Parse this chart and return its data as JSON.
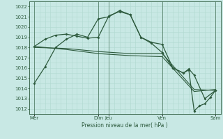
{
  "title": "Pression niveau de la mer( hPa )",
  "bg_color": "#c8e8e4",
  "grid_minor_color": "#b0d8d0",
  "grid_major_color": "#2d5a3d",
  "line_color": "#2d5a3d",
  "ylim": [
    1011.5,
    1022.5
  ],
  "yticks": [
    1012,
    1013,
    1014,
    1015,
    1016,
    1017,
    1018,
    1019,
    1020,
    1021,
    1022
  ],
  "xlim": [
    0,
    18
  ],
  "xtick_labels": [
    "Mer",
    "Dim",
    "Jeu",
    "Ven",
    "Sam"
  ],
  "xtick_positions": [
    0.5,
    6.5,
    7.5,
    12.5,
    17.5
  ],
  "vlines_dark": [
    0.5,
    6.5,
    7.5,
    12.5,
    17.5
  ],
  "series1": {
    "x": [
      0.5,
      1.5,
      2.5,
      3.5,
      4.5,
      5.5,
      6.5,
      7.5,
      8.5,
      9.5,
      10.5,
      11.5,
      12.5
    ],
    "y": [
      1014.5,
      1016.1,
      1018.0,
      1018.8,
      1019.3,
      1019.0,
      1020.8,
      1021.0,
      1021.6,
      1021.2,
      1019.0,
      1018.4,
      1017.5
    ]
  },
  "series2": {
    "x": [
      0.5,
      1.5,
      2.5,
      3.5,
      4.5,
      5.5,
      6.5,
      7.5,
      8.5,
      9.5,
      10.5,
      11.5,
      12.5,
      13.5,
      14.5,
      15.0,
      15.5,
      16.5,
      17.5
    ],
    "y": [
      1018.1,
      1018.8,
      1019.2,
      1019.3,
      1019.1,
      1018.9,
      1019.0,
      1021.1,
      1021.5,
      1021.2,
      1019.0,
      1018.5,
      1018.3,
      1016.0,
      1015.5,
      1015.9,
      1015.3,
      1013.0,
      1013.8
    ]
  },
  "series3": {
    "x": [
      0.5,
      3.5,
      6.5,
      9.5,
      12.5,
      15.5,
      17.5
    ],
    "y": [
      1018.0,
      1017.9,
      1017.6,
      1017.4,
      1017.4,
      1013.9,
      1013.8
    ]
  },
  "series4": {
    "x": [
      0.5,
      3.5,
      6.5,
      9.5,
      12.5,
      15.5,
      17.5
    ],
    "y": [
      1018.1,
      1017.8,
      1017.4,
      1017.2,
      1017.1,
      1013.7,
      1013.9
    ]
  },
  "series5": {
    "x": [
      12.5,
      13.5,
      14.5,
      15.0,
      15.5,
      16.0,
      16.5,
      17.0,
      17.5
    ],
    "y": [
      1017.5,
      1016.0,
      1015.5,
      1015.8,
      1011.8,
      1012.3,
      1012.5,
      1013.1,
      1013.8
    ]
  }
}
